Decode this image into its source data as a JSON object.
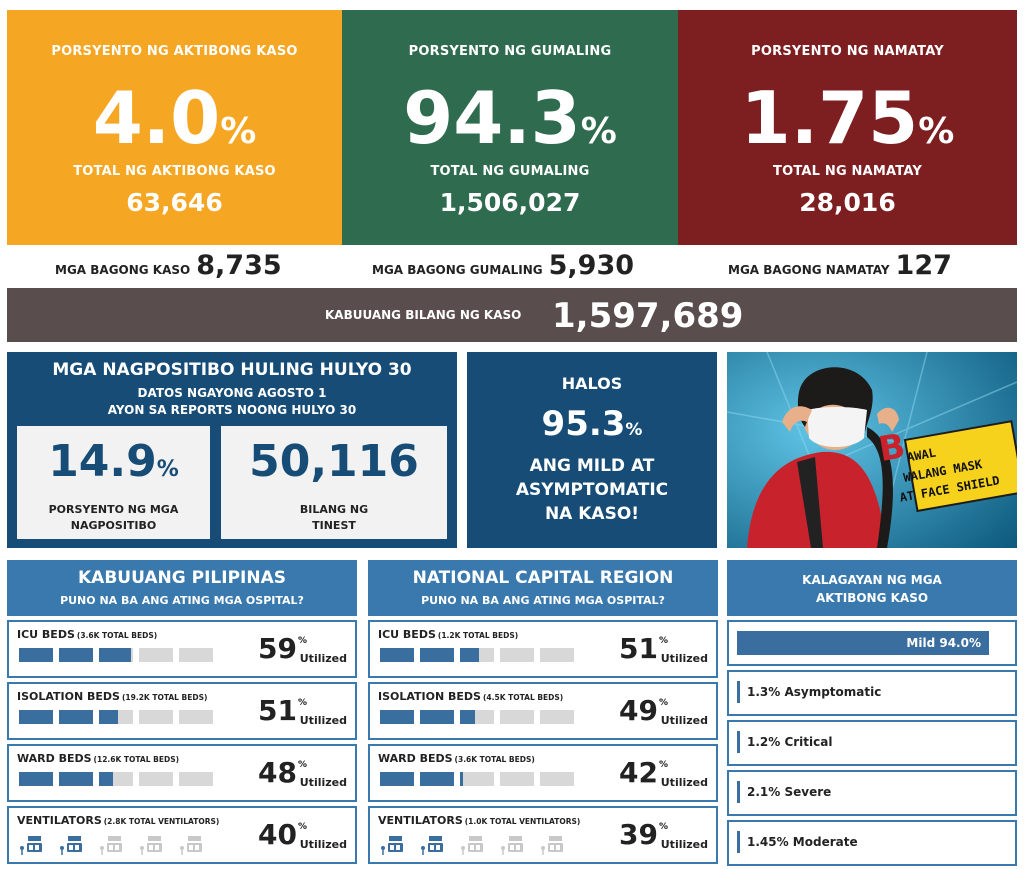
{
  "summary": {
    "active": {
      "label": "PORSYENTO NG AKTIBONG KASO",
      "pct": "4.0",
      "pct_sign": "%",
      "total_label": "TOTAL NG AKTIBONG KASO",
      "total": "63,646",
      "color": "#f5a623"
    },
    "recovered": {
      "label": "PORSYENTO NG GUMALING",
      "pct": "94.3",
      "pct_sign": "%",
      "total_label": "TOTAL NG GUMALING",
      "total": "1,506,027",
      "color": "#2e6b4f"
    },
    "deaths": {
      "label": "PORSYENTO NG NAMATAY",
      "pct": "1.75",
      "pct_sign": "%",
      "total_label": "TOTAL NG NAMATAY",
      "total": "28,016",
      "color": "#7d1e21"
    }
  },
  "new_cases": {
    "cases_label": "MGA BAGONG KASO",
    "cases": "8,735",
    "recovered_label": "MGA BAGONG GUMALING",
    "recovered": "5,930",
    "deaths_label": "MGA BAGONG NAMATAY",
    "deaths": "127"
  },
  "total_cases": {
    "label": "KABUUANG BILANG NG KASO",
    "value": "1,597,689"
  },
  "testing": {
    "title": "MGA NAGPOSITIBO HULING HULYO 30",
    "subtitle1": "DATOS NGAYONG AGOSTO 1",
    "subtitle2": "AYON SA REPORTS NOONG HULYO 30",
    "positivity": "14.9",
    "positivity_sign": "%",
    "positivity_label1": "PORSYENTO NG MGA",
    "positivity_label2": "NAGPOSITIBO",
    "tested": "50,116",
    "tested_label1": "BILANG NG",
    "tested_label2": "TINEST"
  },
  "mild": {
    "line1": "HALOS",
    "pct": "95.3",
    "pct_sign": "%",
    "line2": "ANG MILD AT",
    "line3": "ASYMPTOMATIC",
    "line4": "NA KASO!"
  },
  "poster": {
    "line1": "AWAL",
    "line1_initial": "B",
    "line2": "WALANG MASK",
    "line3": "AT FACE SHIELD"
  },
  "ph": {
    "title": "KABUUANG PILIPINAS",
    "subtitle": "PUNO NA BA ANG ATING MGA OSPITAL?",
    "rows": [
      {
        "name": "ICU BEDS",
        "sub": "(3.6K TOTAL BEDS)",
        "pct": "59",
        "sign": "%",
        "util": "Utilized",
        "level": 0.59
      },
      {
        "name": "ISOLATION BEDS",
        "sub": "(19.2K TOTAL BEDS)",
        "pct": "51",
        "sign": "%",
        "util": "Utilized",
        "level": 0.51
      },
      {
        "name": "WARD BEDS",
        "sub": "(12.6K TOTAL BEDS)",
        "pct": "48",
        "sign": "%",
        "util": "Utilized",
        "level": 0.48
      },
      {
        "name": "VENTILATORS",
        "sub": "(2.8K TOTAL VENTILATORS)",
        "pct": "40",
        "sign": "%",
        "util": "Utilized",
        "level": 0.4
      }
    ]
  },
  "ncr": {
    "title": "NATIONAL CAPITAL REGION",
    "subtitle": "PUNO NA BA ANG ATING MGA OSPITAL?",
    "rows": [
      {
        "name": "ICU BEDS",
        "sub": "(1.2K TOTAL BEDS)",
        "pct": "51",
        "sign": "%",
        "util": "Utilized",
        "level": 0.51
      },
      {
        "name": "ISOLATION BEDS",
        "sub": "(4.5K TOTAL BEDS)",
        "pct": "49",
        "sign": "%",
        "util": "Utilized",
        "level": 0.49
      },
      {
        "name": "WARD BEDS",
        "sub": "(3.6K TOTAL BEDS)",
        "pct": "42",
        "sign": "%",
        "util": "Utilized",
        "level": 0.42
      },
      {
        "name": "VENTILATORS",
        "sub": "(1.0K TOTAL VENTILATORS)",
        "pct": "39",
        "sign": "%",
        "util": "Utilized",
        "level": 0.39
      }
    ]
  },
  "active_status": {
    "title1": "KALAGAYAN NG MGA",
    "title2": "AKTIBONG KASO",
    "mild": "Mild 94.0%",
    "items": [
      "1.3% Asymptomatic",
      "1.2% Critical",
      "2.1% Severe",
      "1.45% Moderate"
    ]
  },
  "colors": {
    "band": "#5a4d4d",
    "blue": "#164c76",
    "hosp_blue": "#3a79ae",
    "bar_fill": "#3a6e9f"
  }
}
